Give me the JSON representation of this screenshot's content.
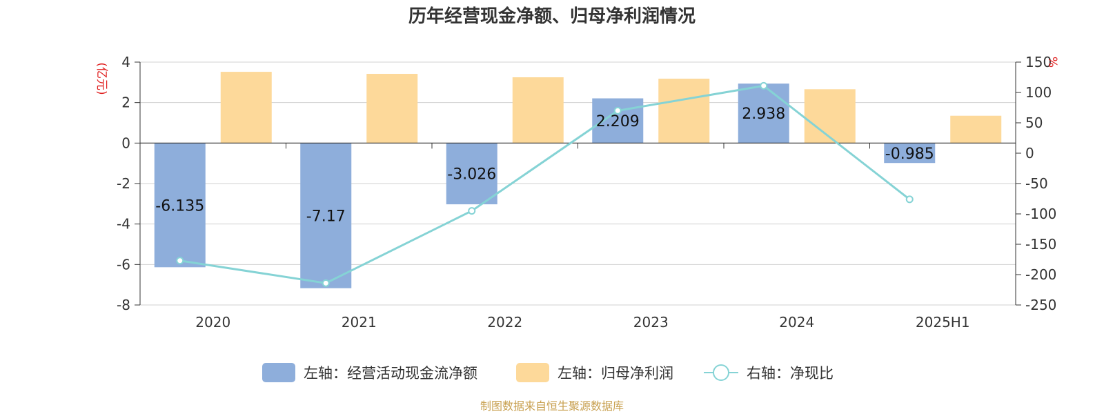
{
  "chart_data": {
    "type": "bar",
    "title": "历年经营现金净额、归母净利润情况",
    "categories": [
      "2020",
      "2021",
      "2022",
      "2023",
      "2024",
      "2025H1"
    ],
    "left_axis": {
      "unit": "(亿元)",
      "ylim": [
        -8,
        4
      ],
      "ticks": [
        "4",
        "2",
        "0",
        "-2",
        "-4",
        "-6",
        "-8"
      ]
    },
    "right_axis": {
      "unit": "%",
      "ylim": [
        -250,
        150
      ],
      "ticks": [
        "150",
        "100",
        "50",
        "0",
        "-50",
        "-100",
        "-150",
        "-200",
        "-250"
      ]
    },
    "series": [
      {
        "name": "左轴：经营活动现金流净额",
        "type": "bar",
        "axis": "left",
        "color": "#8eaedb",
        "values": [
          -6.135,
          -7.17,
          -3.026,
          2.209,
          2.938,
          -0.985
        ],
        "labels": [
          "-6.135",
          "-7.17",
          "-3.026",
          "2.209",
          "2.938",
          "-0.985"
        ]
      },
      {
        "name": "左轴：归母净利润",
        "type": "bar",
        "axis": "left",
        "color": "#fdd99a",
        "values": [
          3.52,
          3.42,
          3.25,
          3.18,
          2.66,
          1.35
        ]
      },
      {
        "name": "右轴：净现比",
        "type": "line",
        "axis": "right",
        "color": "#85d3d5",
        "values": [
          -177,
          -214,
          -95,
          70,
          111,
          -76
        ]
      }
    ],
    "grid": true,
    "legend_position": "bottom"
  },
  "footer": {
    "source": "制图数据来自恒生聚源数据库"
  },
  "colors": {
    "unit": "#e02020",
    "footer": "#c8a050"
  }
}
